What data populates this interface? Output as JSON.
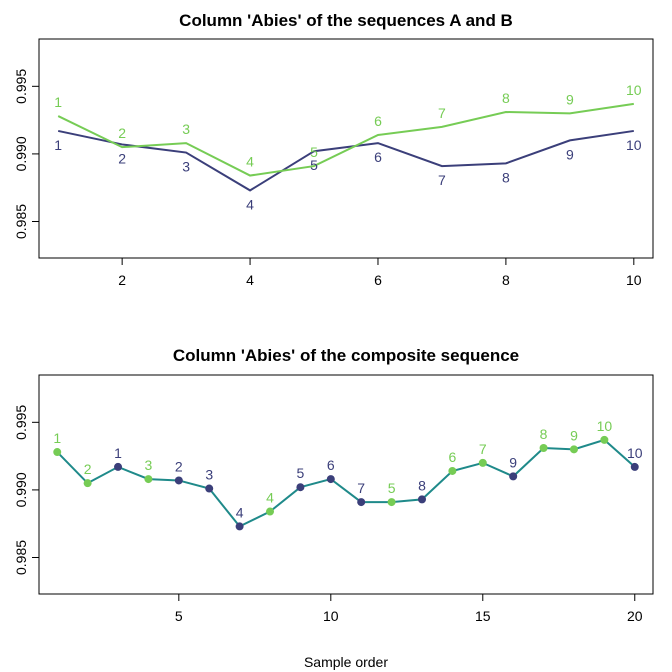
{
  "colors": {
    "seq_a": "#3b3f7a",
    "seq_b": "#76cc55",
    "composite_line": "#1f8a8a"
  },
  "chart_data": [
    {
      "type": "line",
      "title": "Column 'Abies' of the sequences A and B",
      "xlabel": "",
      "ylabel": "",
      "xlim": [
        0.7,
        10.3
      ],
      "ylim": [
        0.9823,
        0.9985
      ],
      "xticks": [
        2,
        4,
        6,
        8,
        10
      ],
      "yticks": [
        0.985,
        0.99,
        0.995
      ],
      "ytick_labels": [
        "0.985",
        "0.990",
        "0.995"
      ],
      "grid": false,
      "series": [
        {
          "x": [
            1,
            2,
            3,
            4,
            5,
            6,
            7,
            8,
            9,
            10
          ],
          "values": [
            0.9917,
            0.9907,
            0.9901,
            0.9873,
            0.9902,
            0.9908,
            0.9891,
            0.9893,
            0.991,
            0.9917
          ],
          "labels": [
            "1",
            "2",
            "3",
            "4",
            "5",
            "6",
            "7",
            "8",
            "9",
            "10"
          ],
          "color": "#3b3f7a"
        },
        {
          "x": [
            1,
            2,
            3,
            4,
            5,
            6,
            7,
            8,
            9,
            10
          ],
          "values": [
            0.9928,
            0.9905,
            0.9908,
            0.9884,
            0.9891,
            0.9914,
            0.992,
            0.9931,
            0.993,
            0.9937
          ],
          "labels": [
            "1",
            "2",
            "3",
            "4",
            "5",
            "6",
            "7",
            "8",
            "9",
            "10"
          ],
          "color": "#76cc55"
        }
      ]
    },
    {
      "type": "line",
      "title": "Column 'Abies' of the composite sequence",
      "xlabel": "Sample order",
      "ylabel": "",
      "xlim": [
        0.4,
        20.6
      ],
      "ylim": [
        0.9823,
        0.9985
      ],
      "xticks": [
        5,
        10,
        15,
        20
      ],
      "yticks": [
        0.985,
        0.99,
        0.995
      ],
      "ytick_labels": [
        "0.985",
        "0.990",
        "0.995"
      ],
      "grid": false,
      "points": [
        {
          "x": 1,
          "y": 0.9928,
          "label": "1",
          "seq": "B"
        },
        {
          "x": 2,
          "y": 0.9905,
          "label": "2",
          "seq": "B"
        },
        {
          "x": 3,
          "y": 0.9917,
          "label": "1",
          "seq": "A"
        },
        {
          "x": 4,
          "y": 0.9908,
          "label": "3",
          "seq": "B"
        },
        {
          "x": 5,
          "y": 0.9907,
          "label": "2",
          "seq": "A"
        },
        {
          "x": 6,
          "y": 0.9901,
          "label": "3",
          "seq": "A"
        },
        {
          "x": 7,
          "y": 0.9873,
          "label": "4",
          "seq": "A"
        },
        {
          "x": 8,
          "y": 0.9884,
          "label": "4",
          "seq": "B"
        },
        {
          "x": 9,
          "y": 0.9902,
          "label": "5",
          "seq": "A"
        },
        {
          "x": 10,
          "y": 0.9908,
          "label": "6",
          "seq": "A"
        },
        {
          "x": 11,
          "y": 0.9891,
          "label": "7",
          "seq": "A"
        },
        {
          "x": 12,
          "y": 0.9891,
          "label": "5",
          "seq": "B"
        },
        {
          "x": 13,
          "y": 0.9893,
          "label": "8",
          "seq": "A"
        },
        {
          "x": 14,
          "y": 0.9914,
          "label": "6",
          "seq": "B"
        },
        {
          "x": 15,
          "y": 0.992,
          "label": "7",
          "seq": "B"
        },
        {
          "x": 16,
          "y": 0.991,
          "label": "9",
          "seq": "A"
        },
        {
          "x": 17,
          "y": 0.9931,
          "label": "8",
          "seq": "B"
        },
        {
          "x": 18,
          "y": 0.993,
          "label": "9",
          "seq": "B"
        },
        {
          "x": 19,
          "y": 0.9937,
          "label": "10",
          "seq": "B"
        },
        {
          "x": 20,
          "y": 0.9917,
          "label": "10",
          "seq": "A"
        }
      ]
    }
  ]
}
